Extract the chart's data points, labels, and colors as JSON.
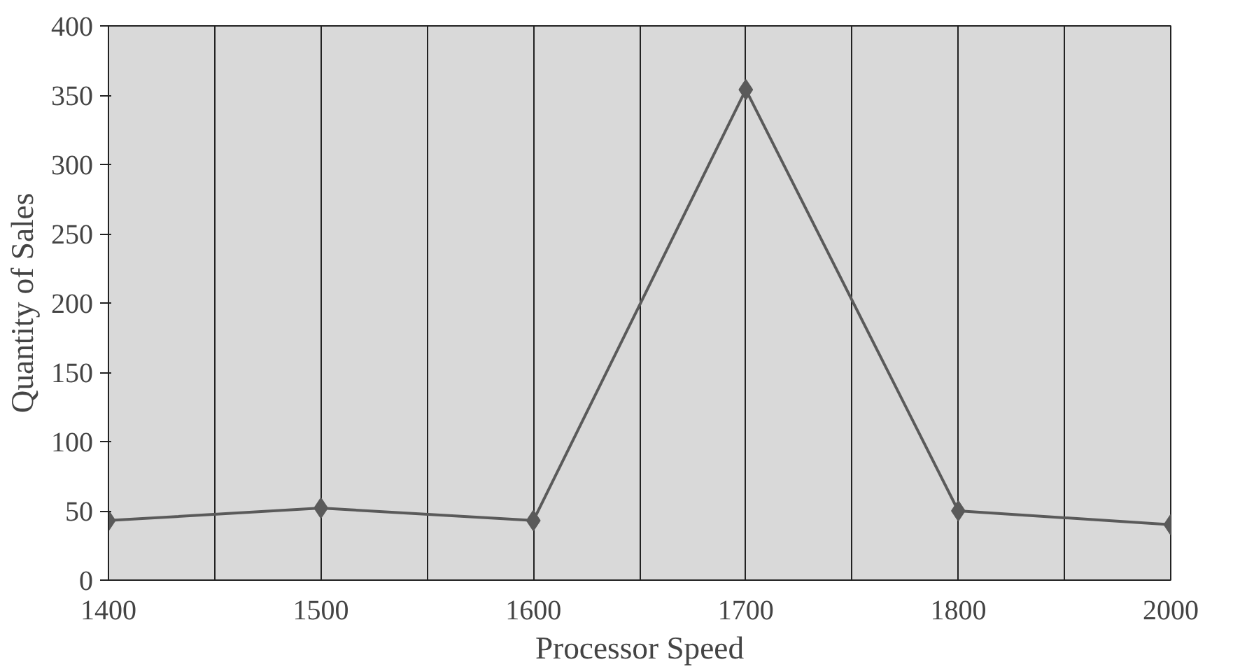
{
  "chart_data": {
    "type": "line",
    "xlabel": "Processor Speed",
    "ylabel": "Quantity of Sales",
    "categories": [
      "1400",
      "1500",
      "1600",
      "1700",
      "1800",
      "2000"
    ],
    "series": [
      {
        "color": "#5a5a5a",
        "values": [
          43,
          52,
          43,
          354,
          50,
          40
        ]
      }
    ],
    "ylim": [
      0,
      400
    ],
    "yticks": [
      0,
      50,
      100,
      150,
      200,
      250,
      300,
      350,
      400
    ],
    "grid": "x",
    "marker": "diamond",
    "line_style": "solid"
  }
}
